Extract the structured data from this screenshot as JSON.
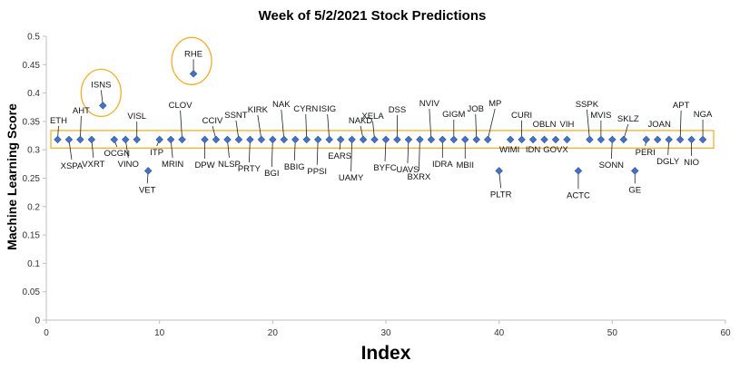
{
  "chart_data": {
    "type": "scatter",
    "title": "Week of 5/2/2021 Stock Predictions",
    "xlabel": "Index",
    "ylabel": "Machine Learning Score",
    "xlim": [
      0,
      60
    ],
    "ylim": [
      0,
      0.5
    ],
    "xticks": [
      0,
      10,
      20,
      30,
      40,
      50,
      60
    ],
    "yticks": [
      0,
      0.05,
      0.1,
      0.15,
      0.2,
      0.25,
      0.3,
      0.35,
      0.4,
      0.45,
      0.5
    ],
    "grid": false,
    "marker_color": "#4472c4",
    "highlight_color": "#f0b030",
    "points": [
      {
        "x": 1,
        "y": 0.318,
        "label": "ETH"
      },
      {
        "x": 2,
        "y": 0.318,
        "label": "XSPA"
      },
      {
        "x": 3,
        "y": 0.318,
        "label": "AHT"
      },
      {
        "x": 4,
        "y": 0.318,
        "label": "VXRT"
      },
      {
        "x": 5,
        "y": 0.378,
        "label": "ISNS"
      },
      {
        "x": 6,
        "y": 0.318,
        "label": "OCGN"
      },
      {
        "x": 7,
        "y": 0.318,
        "label": "VINO"
      },
      {
        "x": 8,
        "y": 0.318,
        "label": "VISL"
      },
      {
        "x": 9,
        "y": 0.263,
        "label": "VET"
      },
      {
        "x": 10,
        "y": 0.318,
        "label": "ITP"
      },
      {
        "x": 11,
        "y": 0.318,
        "label": "MRIN"
      },
      {
        "x": 12,
        "y": 0.318,
        "label": "CLOV"
      },
      {
        "x": 13,
        "y": 0.434,
        "label": "RHE"
      },
      {
        "x": 14,
        "y": 0.318,
        "label": "DPW"
      },
      {
        "x": 15,
        "y": 0.318,
        "label": "CCIV"
      },
      {
        "x": 16,
        "y": 0.318,
        "label": "NLSP"
      },
      {
        "x": 17,
        "y": 0.318,
        "label": "SSNT"
      },
      {
        "x": 18,
        "y": 0.318,
        "label": "PRTY"
      },
      {
        "x": 19,
        "y": 0.318,
        "label": "KIRK"
      },
      {
        "x": 20,
        "y": 0.318,
        "label": "BGI"
      },
      {
        "x": 21,
        "y": 0.318,
        "label": "NAK"
      },
      {
        "x": 22,
        "y": 0.318,
        "label": "BBIG"
      },
      {
        "x": 23,
        "y": 0.318,
        "label": "CYRN"
      },
      {
        "x": 24,
        "y": 0.318,
        "label": "PPSI"
      },
      {
        "x": 25,
        "y": 0.318,
        "label": "ISIG"
      },
      {
        "x": 26,
        "y": 0.318,
        "label": "EARS"
      },
      {
        "x": 27,
        "y": 0.318,
        "label": "UAMY"
      },
      {
        "x": 28,
        "y": 0.318,
        "label": "NAKD"
      },
      {
        "x": 29,
        "y": 0.318,
        "label": "XELA"
      },
      {
        "x": 30,
        "y": 0.318,
        "label": "BYFC"
      },
      {
        "x": 31,
        "y": 0.318,
        "label": "DSS"
      },
      {
        "x": 32,
        "y": 0.318,
        "label": "UAVS"
      },
      {
        "x": 33,
        "y": 0.318,
        "label": "BXRX"
      },
      {
        "x": 34,
        "y": 0.318,
        "label": "NVIV"
      },
      {
        "x": 35,
        "y": 0.318,
        "label": "IDRA"
      },
      {
        "x": 36,
        "y": 0.318,
        "label": "GIGM"
      },
      {
        "x": 37,
        "y": 0.318,
        "label": "MBII"
      },
      {
        "x": 38,
        "y": 0.318,
        "label": "JOB"
      },
      {
        "x": 39,
        "y": 0.318,
        "label": "MP"
      },
      {
        "x": 40,
        "y": 0.263,
        "label": "PLTR"
      },
      {
        "x": 41,
        "y": 0.318,
        "label": "WIMI"
      },
      {
        "x": 42,
        "y": 0.318,
        "label": "CURI"
      },
      {
        "x": 43,
        "y": 0.318,
        "label": "IDN"
      },
      {
        "x": 44,
        "y": 0.318,
        "label": "OBLN"
      },
      {
        "x": 45,
        "y": 0.318,
        "label": "GOVX"
      },
      {
        "x": 46,
        "y": 0.318,
        "label": "VIH"
      },
      {
        "x": 47,
        "y": 0.263,
        "label": "ACTC"
      },
      {
        "x": 48,
        "y": 0.318,
        "label": "SSPK"
      },
      {
        "x": 49,
        "y": 0.318,
        "label": "MVIS"
      },
      {
        "x": 50,
        "y": 0.318,
        "label": "SONN"
      },
      {
        "x": 51,
        "y": 0.318,
        "label": "SKLZ"
      },
      {
        "x": 52,
        "y": 0.263,
        "label": "GE"
      },
      {
        "x": 53,
        "y": 0.318,
        "label": "PERI"
      },
      {
        "x": 54,
        "y": 0.318,
        "label": "JOAN"
      },
      {
        "x": 55,
        "y": 0.318,
        "label": "DGLY"
      },
      {
        "x": 56,
        "y": 0.318,
        "label": "APT"
      },
      {
        "x": 57,
        "y": 0.318,
        "label": "NIO"
      },
      {
        "x": 58,
        "y": 0.318,
        "label": "NGA"
      }
    ],
    "highlighted": [
      "ISNS",
      "RHE"
    ]
  }
}
